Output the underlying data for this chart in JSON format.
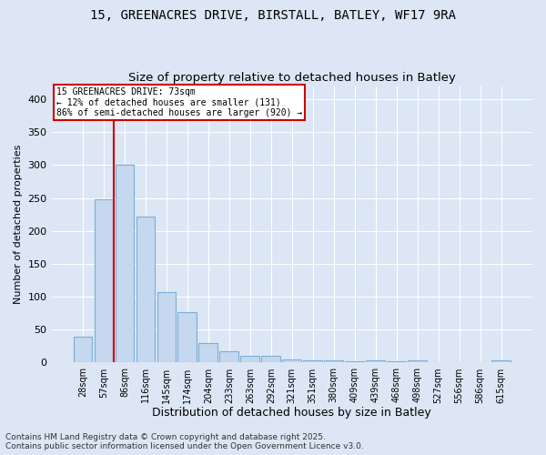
{
  "title_line1": "15, GREENACRES DRIVE, BIRSTALL, BATLEY, WF17 9RA",
  "title_line2": "Size of property relative to detached houses in Batley",
  "xlabel": "Distribution of detached houses by size in Batley",
  "ylabel": "Number of detached properties",
  "categories": [
    "28sqm",
    "57sqm",
    "86sqm",
    "116sqm",
    "145sqm",
    "174sqm",
    "204sqm",
    "233sqm",
    "263sqm",
    "292sqm",
    "321sqm",
    "351sqm",
    "380sqm",
    "409sqm",
    "439sqm",
    "468sqm",
    "498sqm",
    "527sqm",
    "556sqm",
    "586sqm",
    "615sqm"
  ],
  "values": [
    40,
    248,
    300,
    222,
    107,
    76,
    30,
    17,
    11,
    10,
    5,
    4,
    3,
    2,
    3,
    2,
    3,
    0,
    0,
    0,
    3
  ],
  "bar_color": "#c5d8ef",
  "bar_edge_color": "#7bafd4",
  "vline_x": 1.5,
  "vline_color": "#cc0000",
  "annotation_text": "15 GREENACRES DRIVE: 73sqm\n← 12% of detached houses are smaller (131)\n86% of semi-detached houses are larger (920) →",
  "annotation_box_color": "#ffffff",
  "annotation_box_edge_color": "#cc0000",
  "background_color": "#dce6f5",
  "plot_bg_color": "#dce6f5",
  "ylim": [
    0,
    420
  ],
  "yticks": [
    0,
    50,
    100,
    150,
    200,
    250,
    300,
    350,
    400
  ],
  "grid_color": "#ffffff",
  "footer_line1": "Contains HM Land Registry data © Crown copyright and database right 2025.",
  "footer_line2": "Contains public sector information licensed under the Open Government Licence v3.0.",
  "title_fontsize": 10,
  "subtitle_fontsize": 9.5,
  "tick_fontsize": 7,
  "ylabel_fontsize": 8,
  "xlabel_fontsize": 9,
  "footer_fontsize": 6.5
}
